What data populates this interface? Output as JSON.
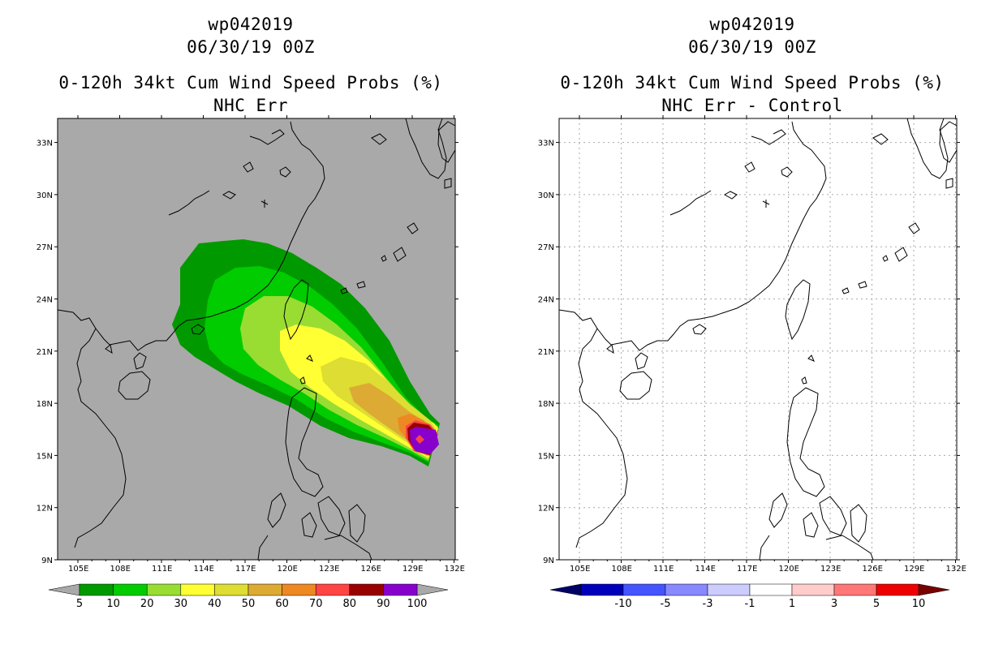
{
  "left": {
    "title_lines": [
      "wp042019",
      "06/30/19 00Z",
      "0-120h 34kt Cum Wind Speed Probs (%)",
      "NHC Err"
    ],
    "background": "#a9a9a9",
    "colorbar": {
      "labels": [
        "5",
        "10",
        "20",
        "30",
        "40",
        "50",
        "60",
        "70",
        "80",
        "90",
        "100"
      ],
      "colors": [
        "#009a00",
        "#00cc00",
        "#99dd33",
        "#ffff33",
        "#dddd33",
        "#ddaa33",
        "#ee8822",
        "#ff4444",
        "#990000",
        "#8800cc"
      ],
      "under_color": "#a9a9a9",
      "over_color": "#a9a9a9"
    }
  },
  "right": {
    "title_lines": [
      "wp042019",
      "06/30/19 00Z",
      "0-120h 34kt Cum Wind Speed Probs (%)",
      "NHC Err - Control"
    ],
    "background": "#ffffff",
    "colorbar": {
      "labels": [
        "-10",
        "-5",
        "-3",
        "-1",
        "1",
        "3",
        "5",
        "10"
      ],
      "colors": [
        "#0000bb",
        "#4455ff",
        "#8888ff",
        "#ccccff",
        "#ffffff",
        "#ffcccc",
        "#ff7777",
        "#ee0000"
      ],
      "under_color": "#000066",
      "over_color": "#770000"
    }
  },
  "map": {
    "lon_labels": [
      "105E",
      "108E",
      "111E",
      "114E",
      "117E",
      "120E",
      "123E",
      "126E",
      "129E",
      "132E"
    ],
    "lat_labels": [
      "9N",
      "12N",
      "15N",
      "18N",
      "21N",
      "24N",
      "27N",
      "30N",
      "33N"
    ]
  }
}
